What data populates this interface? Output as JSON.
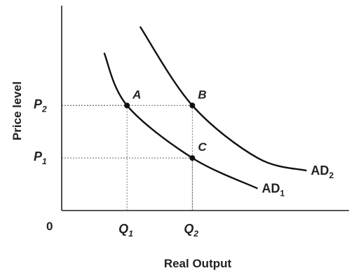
{
  "chart_data": {
    "type": "line",
    "title": "",
    "xlabel": "Real Output",
    "ylabel": "Price level",
    "origin_label": "0",
    "grid": false,
    "x_ticks": [
      {
        "base": "Q",
        "sub": "1",
        "value": 1
      },
      {
        "base": "Q",
        "sub": "2",
        "value": 2
      }
    ],
    "y_ticks": [
      {
        "base": "P",
        "sub": "1",
        "value": 1
      },
      {
        "base": "P",
        "sub": "2",
        "value": 2
      }
    ],
    "xlim": [
      0,
      4.4
    ],
    "ylim": [
      0,
      3.9
    ],
    "series": [
      {
        "name": "AD1",
        "label_base": "AD",
        "label_sub": "1",
        "points": [
          [
            0.65,
            3.0
          ],
          [
            1.0,
            2.0
          ],
          [
            2.0,
            1.0
          ],
          [
            3.0,
            0.42
          ]
        ]
      },
      {
        "name": "AD2",
        "label_base": "AD",
        "label_sub": "2",
        "points": [
          [
            1.2,
            3.5
          ],
          [
            2.0,
            2.0
          ],
          [
            3.0,
            1.0
          ],
          [
            3.75,
            0.76
          ]
        ]
      }
    ],
    "points": [
      {
        "label": "A",
        "x": 1,
        "y": 2
      },
      {
        "label": "B",
        "x": 2,
        "y": 2
      },
      {
        "label": "C",
        "x": 2,
        "y": 1
      }
    ]
  }
}
